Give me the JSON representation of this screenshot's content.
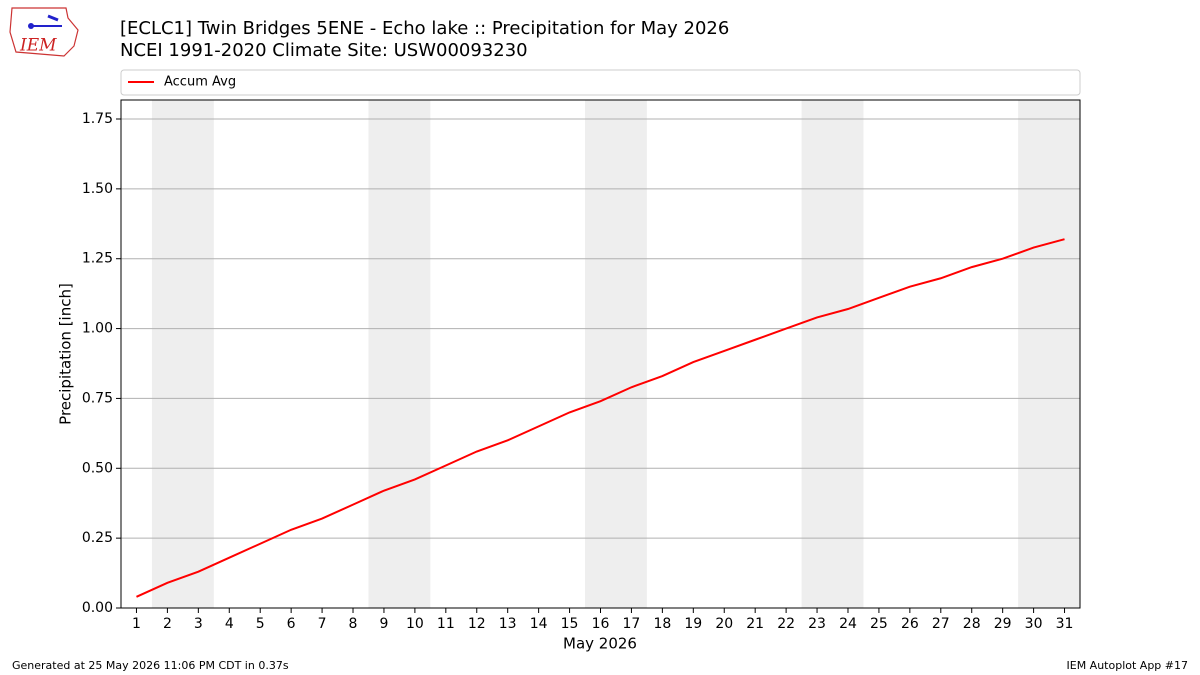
{
  "logo": {
    "text": "IEM"
  },
  "chart_data": {
    "type": "line",
    "title": "[ECLC1] Twin Bridges 5ENE - Echo lake :: Precipitation for May 2026",
    "subtitle": "NCEI 1991-2020 Climate Site: USW00093230",
    "x_label": "May 2026",
    "y_label": "Precipitation [inch]",
    "x": [
      1,
      2,
      3,
      4,
      5,
      6,
      7,
      8,
      9,
      10,
      11,
      12,
      13,
      14,
      15,
      16,
      17,
      18,
      19,
      20,
      21,
      22,
      23,
      24,
      25,
      26,
      27,
      28,
      29,
      30,
      31
    ],
    "series": [
      {
        "name": "Accum Avg",
        "color": "#ff0000",
        "values": [
          0.04,
          0.09,
          0.13,
          0.18,
          0.23,
          0.28,
          0.32,
          0.37,
          0.42,
          0.46,
          0.51,
          0.56,
          0.6,
          0.65,
          0.7,
          0.74,
          0.79,
          0.83,
          0.88,
          0.92,
          0.96,
          1.0,
          1.04,
          1.07,
          1.11,
          1.15,
          1.18,
          1.22,
          1.25,
          1.29,
          1.32
        ]
      }
    ],
    "xlim": [
      0.5,
      31.5
    ],
    "xticks": [
      1,
      2,
      3,
      4,
      5,
      6,
      7,
      8,
      9,
      10,
      11,
      12,
      13,
      14,
      15,
      16,
      17,
      18,
      19,
      20,
      21,
      22,
      23,
      24,
      25,
      26,
      27,
      28,
      29,
      30,
      31
    ],
    "ylim": [
      0,
      1.818
    ],
    "yticks": [
      {
        "value": 0,
        "label": "0.00"
      },
      {
        "value": 0.25,
        "label": "0.25"
      },
      {
        "value": 0.5,
        "label": "0.50"
      },
      {
        "value": 0.75,
        "label": "0.75"
      },
      {
        "value": 1,
        "label": "1.00"
      },
      {
        "value": 1.25,
        "label": "1.25"
      },
      {
        "value": 1.5,
        "label": "1.50"
      },
      {
        "value": 1.75,
        "label": "1.75"
      }
    ],
    "shaded_x_ranges": [
      [
        1.5,
        3.5
      ],
      [
        8.5,
        10.5
      ],
      [
        15.5,
        17.5
      ],
      [
        22.5,
        24.5
      ],
      [
        29.5,
        31.5
      ]
    ],
    "shade_color": "#eeeeee",
    "grid": true,
    "legend": "top"
  },
  "footer": {
    "left": "Generated at 25 May 2026 11:06 PM CDT in 0.37s",
    "right": "IEM Autoplot App #17"
  }
}
